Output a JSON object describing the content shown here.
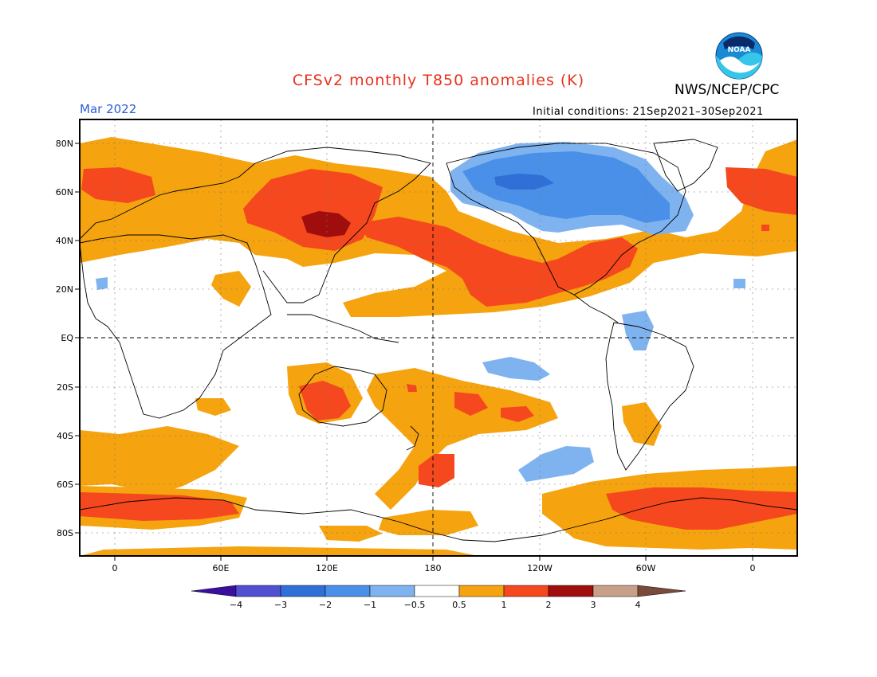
{
  "header": {
    "title": "CFSv2 monthly T850 anomalies (K)",
    "agency": "NWS/NCEP/CPC",
    "month": "Mar 2022",
    "initial_conditions": "Initial conditions: 21Sep2021–30Sep2021",
    "logo_text": "NOAA"
  },
  "axes": {
    "lat_labels": [
      "80N",
      "60N",
      "40N",
      "20N",
      "EQ",
      "20S",
      "40S",
      "60S",
      "80S"
    ],
    "lon_labels": [
      "0",
      "60E",
      "120E",
      "180",
      "120W",
      "60W",
      "0"
    ]
  },
  "colorbar": {
    "tick_labels": [
      "−4",
      "−3",
      "−2",
      "−1",
      "−0.5",
      "0.5",
      "1",
      "2",
      "3",
      "4"
    ],
    "colors": [
      "#3a0fa0",
      "#5050d0",
      "#2f6fd6",
      "#4a90e8",
      "#7fb3f0",
      "#ffffff",
      "#f5a30f",
      "#f5481e",
      "#a00d0d",
      "#c8a08a",
      "#7a4a3a"
    ]
  },
  "colors": {
    "warm_light": "#f5a30f",
    "warm_mid": "#f5481e",
    "warm_dark": "#a00d0d",
    "cool_light": "#7fb3f0",
    "cool_mid": "#4a90e8",
    "cool_dark": "#2f6fd6",
    "title": "#e8321e",
    "month": "#2a5fd6"
  }
}
